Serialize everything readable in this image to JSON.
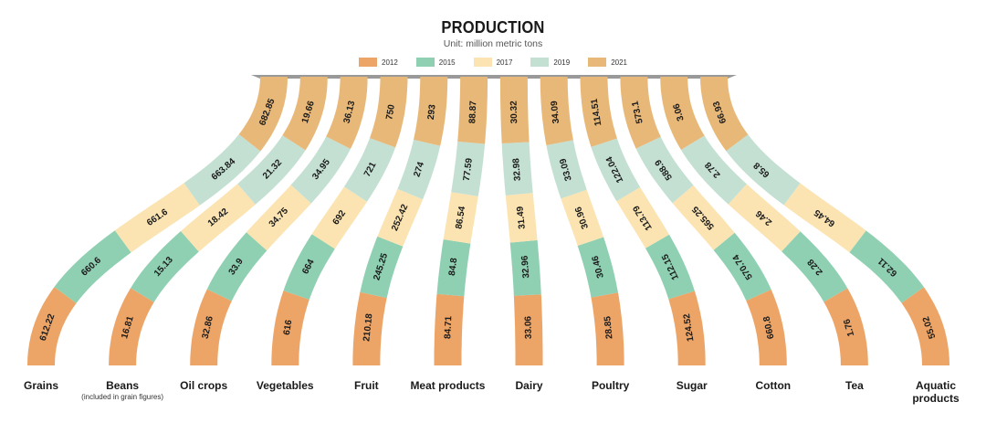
{
  "title": "PRODUCTION",
  "subtitle": "Unit: million metric tons",
  "colors": {
    "2012": "#eda567",
    "2015": "#8fd0b2",
    "2017": "#fbe4b2",
    "2019": "#c4e0d3",
    "2021": "#e8b878",
    "fan_top": "#999999"
  },
  "chart_data": {
    "type": "bar",
    "title": "PRODUCTION",
    "subtitle": "Unit: million metric tons",
    "series_years": [
      "2012",
      "2015",
      "2017",
      "2019",
      "2021"
    ],
    "legend": [
      "2012",
      "2015",
      "2017",
      "2019",
      "2021"
    ],
    "categories": [
      {
        "name": "Grains",
        "note": "",
        "values": [
          "612.22",
          "660.6",
          "661.6",
          "663.84",
          "682.85"
        ]
      },
      {
        "name": "Beans",
        "note": "(included in grain figures)",
        "values": [
          "16.81",
          "15.13",
          "18.42",
          "21.32",
          "19.66"
        ]
      },
      {
        "name": "Oil crops",
        "note": "",
        "values": [
          "32.86",
          "33.9",
          "34.75",
          "34.95",
          "36.13"
        ]
      },
      {
        "name": "Vegetables",
        "note": "",
        "values": [
          "616",
          "664",
          "692",
          "721",
          "750"
        ]
      },
      {
        "name": "Fruit",
        "note": "",
        "values": [
          "210.18",
          "245.25",
          "252.42",
          "274",
          "293"
        ]
      },
      {
        "name": "Meat products",
        "note": "",
        "values": [
          "84.71",
          "84.8",
          "86.54",
          "77.59",
          "88.87"
        ]
      },
      {
        "name": "Dairy",
        "note": "",
        "values": [
          "33.06",
          "32.96",
          "31.49",
          "32.98",
          "30.32"
        ]
      },
      {
        "name": "Poultry",
        "note": "",
        "values": [
          "28.85",
          "30.46",
          "30.96",
          "33.09",
          "34.09"
        ]
      },
      {
        "name": "Sugar",
        "note": "",
        "values": [
          "124.52",
          "112.15",
          "113.79",
          "122.04",
          "114.51"
        ]
      },
      {
        "name": "Cotton",
        "note": "",
        "values": [
          "660.8",
          "570.74",
          "565.25",
          "588.9",
          "573.1"
        ]
      },
      {
        "name": "Tea",
        "note": "",
        "values": [
          "1.76",
          "2.28",
          "2.46",
          "2.78",
          "3.06"
        ]
      },
      {
        "name": "Aquatic",
        "note": "products",
        "values": [
          "55.02",
          "62.11",
          "64.45",
          "65.8",
          "66.93"
        ]
      }
    ]
  }
}
